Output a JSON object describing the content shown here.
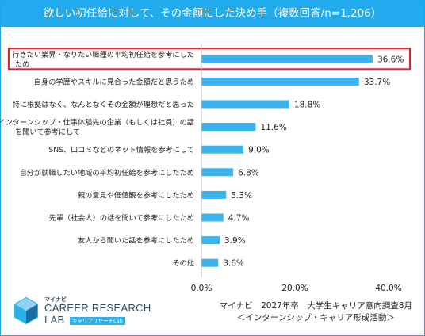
{
  "title": "欲しい初任給に対して、その金額にした決め手（複数回答/n=1,206）",
  "chart_data": {
    "type": "bar",
    "orientation": "horizontal",
    "categories": [
      [
        "行きたい業界・なりたい職種の平均初任給を参考にした",
        "ため"
      ],
      [
        "自身の学歴やスキルに見合った金額だと思うため"
      ],
      [
        "特に根拠はなく、なんとなくその金額が理想だと思った"
      ],
      [
        "インターンシップ・仕事体験先の企業（もしくは社員）の話",
        "を聞いて参考にして"
      ],
      [
        "SNS、口コミなどのネット情報を参考にして"
      ],
      [
        "自分が就職したい地域の平均初任給を参考にしたため"
      ],
      [
        "親の意見や価値観を参考にしたため"
      ],
      [
        "先輩（社会人）の話を聞いて参考にしたため"
      ],
      [
        "友人から聞いた話を参考にしたため"
      ],
      [
        "その他"
      ]
    ],
    "values": [
      36.6,
      33.7,
      18.8,
      11.6,
      9.0,
      6.8,
      5.3,
      4.7,
      3.9,
      3.6
    ],
    "value_labels": [
      "36.6%",
      "33.7%",
      "18.8%",
      "11.6%",
      "9.0%",
      "6.8%",
      "5.3%",
      "4.7%",
      "3.9%",
      "3.6%"
    ],
    "xlim": [
      0,
      40
    ],
    "ticks": [
      0,
      20,
      40
    ],
    "tick_labels": [
      "0.0%",
      "20.0%",
      "40.0%"
    ],
    "highlighted_index": 0,
    "bar_color": "#3bb3ee",
    "highlight_color": "#e8202a",
    "grid": false
  },
  "source": [
    "マイナビ　2027年卒　大学生キャリア意向調査8月",
    "＜インターンシップ・キャリア形成活動＞"
  ],
  "logo": {
    "small": "マイナビ",
    "main": "CAREER RESEARCH",
    "lab": "LAB",
    "sub": "キャリアリサーチLab"
  },
  "colors": {
    "header": "#22aaee",
    "axis": "#bfbfbf",
    "text": "#222222",
    "logo_text": "#2f4d67"
  }
}
